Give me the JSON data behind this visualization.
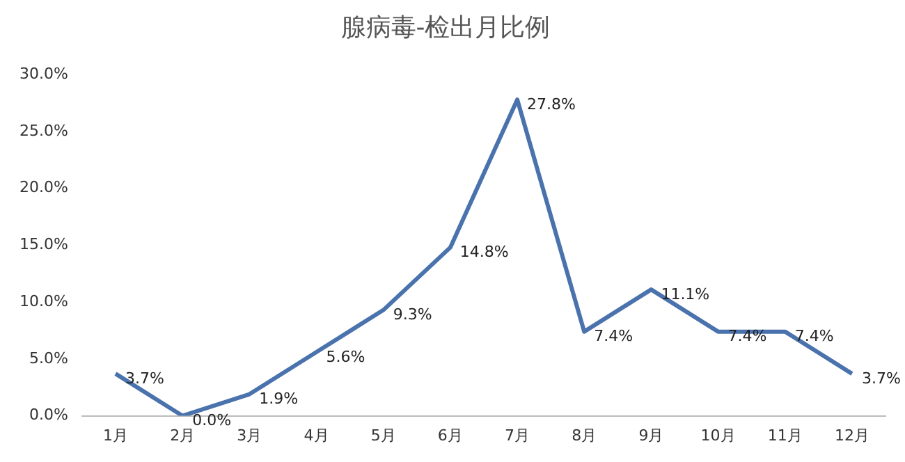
{
  "chart_data": {
    "type": "line",
    "title": "腺病毒-检出月比例",
    "categories": [
      "1月",
      "2月",
      "3月",
      "4月",
      "5月",
      "6月",
      "7月",
      "8月",
      "9月",
      "10月",
      "11月",
      "12月"
    ],
    "series": [
      {
        "color": "#4a72ad",
        "values": [
          3.7,
          0.0,
          1.9,
          5.6,
          9.3,
          14.8,
          27.8,
          7.4,
          11.1,
          7.4,
          7.4,
          3.7
        ],
        "value_labels": [
          "3.7%",
          "0.0%",
          "1.9%",
          "5.6%",
          "9.3%",
          "14.8%",
          "27.8%",
          "7.4%",
          "11.1%",
          "7.4%",
          "7.4%",
          "3.7%"
        ]
      }
    ],
    "ylim": [
      0,
      30
    ],
    "yticks": [
      {
        "value": 0,
        "label": "0.0%"
      },
      {
        "value": 5,
        "label": "5.0%"
      },
      {
        "value": 10,
        "label": "10.0%"
      },
      {
        "value": 15,
        "label": "15.0%"
      },
      {
        "value": 20,
        "label": "20.0%"
      },
      {
        "value": 25,
        "label": "25.0%"
      },
      {
        "value": 30,
        "label": "30.0%"
      }
    ],
    "grid": false,
    "legend": false,
    "marker": "none",
    "line_style": "solid"
  }
}
